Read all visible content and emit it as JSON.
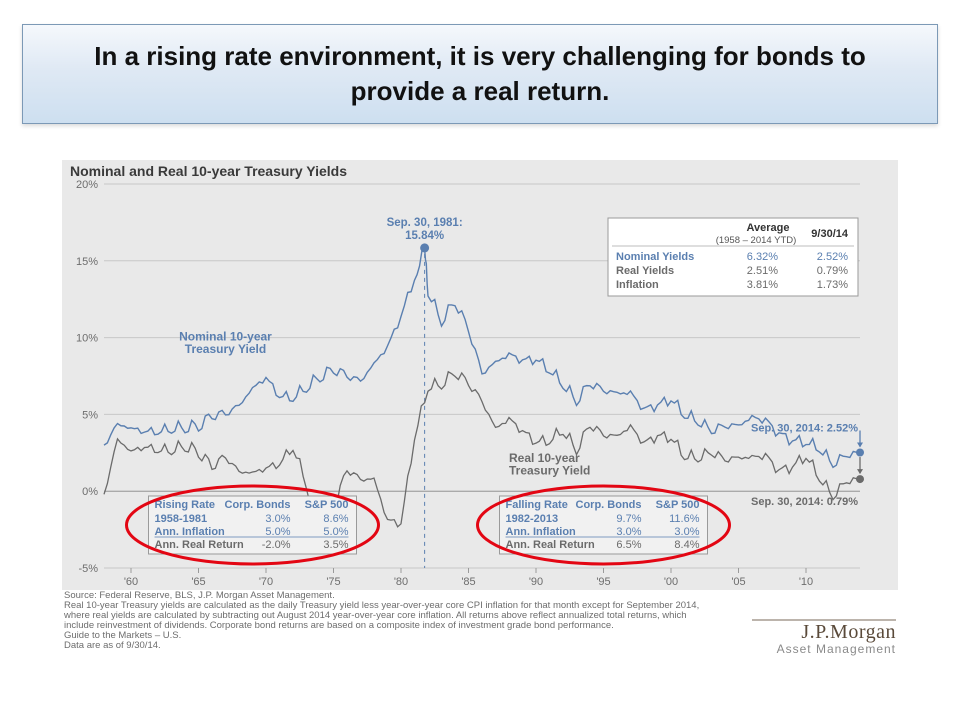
{
  "title": "In a rising rate environment, it is very challenging for bonds to provide a real return.",
  "chart": {
    "type": "line",
    "title": "Nominal and Real 10-year Treasury Yields",
    "background": "#e9e9e9",
    "plot_bg": "#e9e9e9",
    "grid_color": "#c8c8c8",
    "x": {
      "min": 1958,
      "max": 2014,
      "ticks": [
        "'60",
        "'65",
        "'70",
        "'75",
        "'80",
        "'85",
        "'90",
        "'95",
        "'00",
        "'05",
        "'10"
      ],
      "tick_years": [
        1960,
        1965,
        1970,
        1975,
        1980,
        1985,
        1990,
        1995,
        2000,
        2005,
        2010
      ]
    },
    "y": {
      "min": -5,
      "max": 20,
      "ticks": [
        -5,
        0,
        5,
        10,
        15,
        20
      ],
      "format_pct": true
    },
    "series": [
      {
        "key": "nominal",
        "label": "Nominal 10-year Treasury Yield",
        "color": "#5a7fb0",
        "width": 1.4,
        "data": [
          [
            1958,
            3.0
          ],
          [
            1959,
            4.4
          ],
          [
            1960,
            4.1
          ],
          [
            1961,
            3.9
          ],
          [
            1962,
            3.9
          ],
          [
            1963,
            4.1
          ],
          [
            1964,
            4.2
          ],
          [
            1965,
            4.3
          ],
          [
            1966,
            5.0
          ],
          [
            1967,
            5.1
          ],
          [
            1968,
            5.6
          ],
          [
            1969,
            6.7
          ],
          [
            1970,
            7.4
          ],
          [
            1971,
            6.2
          ],
          [
            1972,
            6.1
          ],
          [
            1973,
            6.8
          ],
          [
            1974,
            7.5
          ],
          [
            1975,
            8.0
          ],
          [
            1976,
            7.6
          ],
          [
            1977,
            7.2
          ],
          [
            1978,
            8.3
          ],
          [
            1979,
            9.4
          ],
          [
            1980,
            11.4
          ],
          [
            1981,
            13.9
          ],
          [
            1981.75,
            15.84
          ],
          [
            1982,
            13.0
          ],
          [
            1983,
            11.1
          ],
          [
            1984,
            12.4
          ],
          [
            1985,
            10.6
          ],
          [
            1986,
            7.7
          ],
          [
            1987,
            8.4
          ],
          [
            1988,
            8.9
          ],
          [
            1989,
            8.5
          ],
          [
            1990,
            8.6
          ],
          [
            1991,
            7.9
          ],
          [
            1992,
            7.0
          ],
          [
            1993,
            5.9
          ],
          [
            1994,
            7.1
          ],
          [
            1995,
            6.6
          ],
          [
            1996,
            6.4
          ],
          [
            1997,
            6.4
          ],
          [
            1998,
            5.3
          ],
          [
            1999,
            5.6
          ],
          [
            2000,
            6.0
          ],
          [
            2001,
            5.0
          ],
          [
            2002,
            4.6
          ],
          [
            2003,
            4.0
          ],
          [
            2004,
            4.3
          ],
          [
            2005,
            4.3
          ],
          [
            2006,
            4.8
          ],
          [
            2007,
            4.6
          ],
          [
            2008,
            3.7
          ],
          [
            2009,
            3.3
          ],
          [
            2010,
            3.2
          ],
          [
            2011,
            2.8
          ],
          [
            2012,
            1.8
          ],
          [
            2013,
            2.4
          ],
          [
            2014,
            2.52
          ]
        ]
      },
      {
        "key": "real",
        "label": "Real 10-year Treasury Yield",
        "color": "#6b6b6b",
        "width": 1.3,
        "data": [
          [
            1958,
            -0.2
          ],
          [
            1959,
            3.4
          ],
          [
            1960,
            2.6
          ],
          [
            1961,
            2.9
          ],
          [
            1962,
            2.7
          ],
          [
            1963,
            2.7
          ],
          [
            1964,
            3.0
          ],
          [
            1965,
            2.6
          ],
          [
            1966,
            1.7
          ],
          [
            1967,
            2.3
          ],
          [
            1968,
            1.3
          ],
          [
            1969,
            1.2
          ],
          [
            1970,
            1.5
          ],
          [
            1971,
            1.8
          ],
          [
            1972,
            2.9
          ],
          [
            1973,
            0.5
          ],
          [
            1974,
            -3.5
          ],
          [
            1975,
            -1.1
          ],
          [
            1976,
            1.5
          ],
          [
            1977,
            0.8
          ],
          [
            1978,
            0.8
          ],
          [
            1979,
            -1.9
          ],
          [
            1980,
            -2.1
          ],
          [
            1981,
            3.5
          ],
          [
            1982,
            6.8
          ],
          [
            1983,
            7.0
          ],
          [
            1984,
            7.8
          ],
          [
            1985,
            7.1
          ],
          [
            1986,
            5.9
          ],
          [
            1987,
            4.1
          ],
          [
            1988,
            4.7
          ],
          [
            1989,
            3.9
          ],
          [
            1990,
            3.2
          ],
          [
            1991,
            3.3
          ],
          [
            1992,
            4.0
          ],
          [
            1993,
            2.7
          ],
          [
            1994,
            4.4
          ],
          [
            1995,
            3.7
          ],
          [
            1996,
            3.6
          ],
          [
            1997,
            4.2
          ],
          [
            1998,
            3.1
          ],
          [
            1999,
            3.6
          ],
          [
            2000,
            3.5
          ],
          [
            2001,
            2.3
          ],
          [
            2002,
            2.2
          ],
          [
            2003,
            2.6
          ],
          [
            2004,
            2.1
          ],
          [
            2005,
            2.2
          ],
          [
            2006,
            2.2
          ],
          [
            2007,
            2.3
          ],
          [
            2008,
            1.3
          ],
          [
            2009,
            1.6
          ],
          [
            2010,
            2.3
          ],
          [
            2011,
            0.9
          ],
          [
            2012,
            -0.3
          ],
          [
            2013,
            0.7
          ],
          [
            2014,
            0.79
          ]
        ]
      }
    ],
    "peak": {
      "year": 1981.75,
      "value": 15.84,
      "label": "Sep. 30, 1981:",
      "value_label": "15.84%",
      "divider_color": "#5a7fb0"
    },
    "end_labels": [
      {
        "key": "nominal",
        "text": "Sep. 30, 2014: 2.52%",
        "color": "#5a7fb0",
        "y": 2.52
      },
      {
        "key": "real",
        "text": "Sep. 30, 2014: 0.79%",
        "color": "#6b6b6b",
        "y": 0.79
      }
    ]
  },
  "avg_table": {
    "header": "Average",
    "subheader": "(1958 – 2014 YTD)",
    "col2": "9/30/14",
    "rows": [
      {
        "label": "Nominal Yields",
        "c1": "6.32%",
        "c2": "2.52%",
        "color": "#5a7fb0"
      },
      {
        "label": "Real Yields",
        "c1": "2.51%",
        "c2": "0.79%",
        "color": "#6b6b6b"
      },
      {
        "label": "Inflation",
        "c1": "3.81%",
        "c2": "1.73%",
        "color": "#6b6b6b"
      }
    ],
    "border": "#9a9a9a",
    "bg": "#ffffff"
  },
  "rising": {
    "title": "Rising Rate",
    "c1": "Corp. Bonds",
    "c2": "S&P 500",
    "rows": [
      {
        "label": "1958-1981",
        "c1": "3.0%",
        "c2": "8.6%"
      },
      {
        "label": "Ann. Inflation",
        "c1": "5.0%",
        "c2": "5.0%",
        "underline": true
      },
      {
        "label": "Ann. Real Return",
        "c1": "-2.0%",
        "c2": "3.5%",
        "muted": true
      }
    ],
    "ellipse_color": "#e30613"
  },
  "falling": {
    "title": "Falling Rate",
    "c1": "Corp. Bonds",
    "c2": "S&P 500",
    "rows": [
      {
        "label": "1982-2013",
        "c1": "9.7%",
        "c2": "11.6%"
      },
      {
        "label": "Ann. Inflation",
        "c1": "3.0%",
        "c2": "3.0%",
        "underline": true
      },
      {
        "label": "Ann. Real Return",
        "c1": "6.5%",
        "c2": "8.4%",
        "muted": true
      }
    ],
    "ellipse_color": "#e30613"
  },
  "footnote": {
    "lines": [
      "Source: Federal Reserve, BLS, J.P. Morgan Asset Management.",
      "Real 10-year Treasury yields are calculated as the daily Treasury yield less year-over-year core CPI inflation for that month except for September 2014,",
      "where real yields are calculated by subtracting out August 2014 year-over-year core inflation. All returns above reflect annualized total returns, which",
      "include reinvestment of dividends. Corporate bond returns are based on a composite index of investment grade bond performance.",
      "Guide to the Markets – U.S.",
      "Data are as of 9/30/14."
    ]
  },
  "brand": {
    "l1": "J.P.Morgan",
    "l2": "Asset Management"
  }
}
